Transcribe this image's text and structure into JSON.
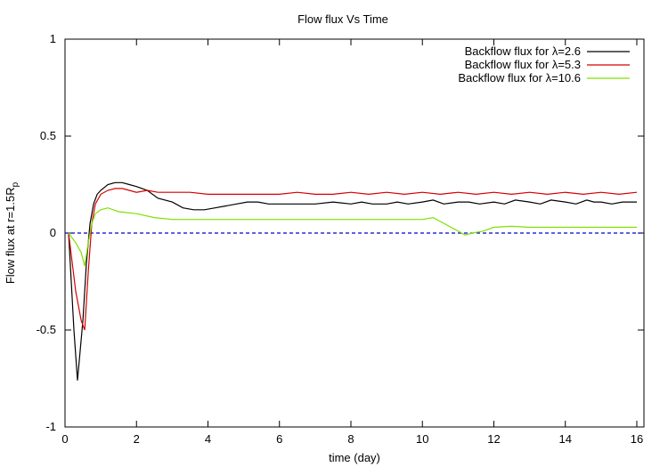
{
  "chart_data": {
    "type": "line",
    "title": "Flow flux Vs Time",
    "xlabel": "time (day)",
    "ylabel_main": "Flow flux at r=1.5R",
    "ylabel_sub": "p",
    "xlim": [
      0,
      16.2
    ],
    "ylim": [
      -1,
      1
    ],
    "xticks": [
      0,
      2,
      4,
      6,
      8,
      10,
      12,
      14,
      16
    ],
    "yticks": [
      -1,
      -0.5,
      0,
      0.5,
      1
    ],
    "ytick_labels": [
      "-1",
      "-0.5",
      "0",
      "0.5",
      "1"
    ],
    "grid": false,
    "legend_position": "top-right",
    "series": [
      {
        "name": "Backflow flux for λ=2.6",
        "color": "#000000",
        "x": [
          0.1,
          0.25,
          0.35,
          0.5,
          0.6,
          0.7,
          0.8,
          0.9,
          1.0,
          1.2,
          1.4,
          1.6,
          1.8,
          2.0,
          2.3,
          2.6,
          3.0,
          3.3,
          3.6,
          3.9,
          4.2,
          4.5,
          4.8,
          5.1,
          5.4,
          5.7,
          6.0,
          6.5,
          7.0,
          7.5,
          8.0,
          8.3,
          8.6,
          9.0,
          9.3,
          9.6,
          10.0,
          10.3,
          10.6,
          11.0,
          11.3,
          11.6,
          12.0,
          12.3,
          12.6,
          13.0,
          13.3,
          13.6,
          14.0,
          14.3,
          14.6,
          14.8,
          15.0,
          15.3,
          15.6,
          16.0
        ],
        "y": [
          0.0,
          -0.5,
          -0.76,
          -0.45,
          -0.15,
          0.05,
          0.15,
          0.2,
          0.22,
          0.25,
          0.26,
          0.26,
          0.25,
          0.24,
          0.22,
          0.18,
          0.16,
          0.13,
          0.12,
          0.12,
          0.13,
          0.14,
          0.15,
          0.16,
          0.16,
          0.15,
          0.15,
          0.15,
          0.15,
          0.16,
          0.15,
          0.16,
          0.15,
          0.15,
          0.16,
          0.15,
          0.16,
          0.17,
          0.15,
          0.16,
          0.16,
          0.15,
          0.16,
          0.15,
          0.17,
          0.16,
          0.15,
          0.17,
          0.16,
          0.15,
          0.17,
          0.16,
          0.16,
          0.15,
          0.16,
          0.16
        ]
      },
      {
        "name": "Backflow flux for λ=5.3",
        "color": "#d40000",
        "x": [
          0.1,
          0.3,
          0.45,
          0.55,
          0.65,
          0.75,
          0.85,
          1.0,
          1.2,
          1.4,
          1.6,
          1.8,
          2.0,
          2.3,
          2.6,
          3.0,
          3.5,
          4.0,
          4.5,
          5.0,
          5.5,
          6.0,
          6.5,
          7.0,
          7.5,
          8.0,
          8.5,
          9.0,
          9.5,
          10.0,
          10.5,
          11.0,
          11.5,
          12.0,
          12.5,
          13.0,
          13.5,
          14.0,
          14.5,
          15.0,
          15.5,
          16.0
        ],
        "y": [
          0.0,
          -0.3,
          -0.45,
          -0.5,
          -0.2,
          0.05,
          0.15,
          0.2,
          0.22,
          0.23,
          0.23,
          0.22,
          0.21,
          0.22,
          0.21,
          0.21,
          0.21,
          0.2,
          0.2,
          0.2,
          0.2,
          0.2,
          0.21,
          0.2,
          0.2,
          0.21,
          0.2,
          0.21,
          0.2,
          0.21,
          0.2,
          0.21,
          0.2,
          0.21,
          0.2,
          0.21,
          0.2,
          0.21,
          0.2,
          0.21,
          0.2,
          0.21
        ]
      },
      {
        "name": "Backflow flux for λ=10.6",
        "color": "#7fe000",
        "x": [
          0.1,
          0.3,
          0.45,
          0.55,
          0.65,
          0.75,
          0.85,
          1.0,
          1.2,
          1.5,
          2.0,
          2.5,
          3.0,
          4.0,
          5.0,
          6.0,
          7.0,
          8.0,
          9.0,
          10.0,
          10.3,
          10.6,
          10.9,
          11.2,
          11.4,
          11.7,
          12.0,
          12.5,
          13.0,
          14.0,
          15.0,
          16.0
        ],
        "y": [
          0.0,
          -0.05,
          -0.1,
          -0.17,
          -0.05,
          0.05,
          0.1,
          0.12,
          0.13,
          0.11,
          0.1,
          0.08,
          0.07,
          0.07,
          0.07,
          0.07,
          0.07,
          0.07,
          0.07,
          0.07,
          0.08,
          0.05,
          0.02,
          -0.01,
          0.0,
          0.01,
          0.03,
          0.035,
          0.03,
          0.03,
          0.03,
          0.03
        ]
      }
    ],
    "zero_line": {
      "y": 0,
      "color": "#0000d0",
      "dashed": true
    }
  }
}
